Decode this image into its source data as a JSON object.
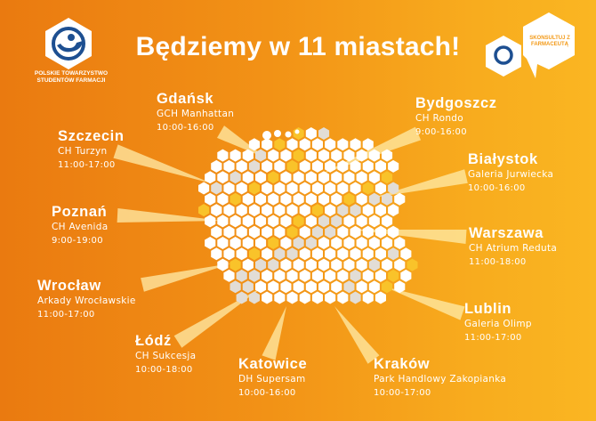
{
  "headline": "Będziemy w 11 miastach!",
  "organization": "POLSKIE TOWARZYSTWO STUDENTÓW FARMACJI",
  "speech_bubble": "SKONSULTUJ Z FARMACEUTĄ",
  "colors": {
    "bg_start": "#ea7a10",
    "bg_end": "#fab622",
    "hex_white": "#ffffff",
    "hex_yellow": "#f9c32a",
    "hex_gray": "#e2ddd6",
    "accent": "#f39a18"
  },
  "cities": [
    {
      "id": "gdansk",
      "name": "Gdańsk",
      "mall": "GCH Manhattan",
      "hours": "10:00-16:00"
    },
    {
      "id": "bydgoszcz",
      "name": "Bydgoszcz",
      "mall": "CH Rondo",
      "hours": "9:00-16:00"
    },
    {
      "id": "szczecin",
      "name": "Szczecin",
      "mall": "CH Turzyn",
      "hours": "11:00-17:00"
    },
    {
      "id": "bialystok",
      "name": "Białystok",
      "mall": "Galeria Jurwiecka",
      "hours": "10:00-16:00"
    },
    {
      "id": "poznan",
      "name": "Poznań",
      "mall": "CH Avenida",
      "hours": "9:00-19:00"
    },
    {
      "id": "warszawa",
      "name": "Warszawa",
      "mall": "CH Atrium Reduta",
      "hours": "11:00-18:00"
    },
    {
      "id": "wroclaw",
      "name": "Wrocław",
      "mall": "Arkady Wrocławskie",
      "hours": "11:00-17:00"
    },
    {
      "id": "lublin",
      "name": "Lublin",
      "mall": "Galeria Olimp",
      "hours": "11:00-17:00"
    },
    {
      "id": "lodz",
      "name": "Łódź",
      "mall": "CH Sukcesja",
      "hours": "10:00-18:00"
    },
    {
      "id": "katowice",
      "name": "Katowice",
      "mall": "DH Supersam",
      "hours": "10:00-16:00"
    },
    {
      "id": "krakow",
      "name": "Kraków",
      "mall": "Park Handlowy Zakopianka",
      "hours": "10:00-17:00"
    }
  ]
}
